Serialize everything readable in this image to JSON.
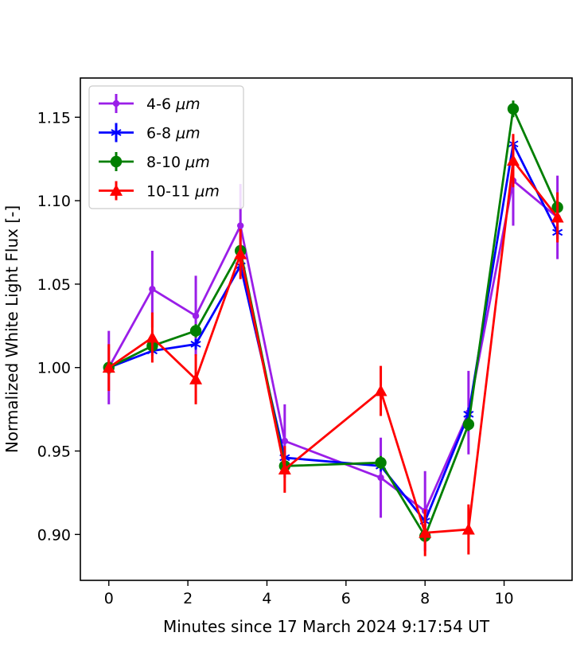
{
  "chart_data": {
    "type": "line",
    "title": "",
    "xlabel": "Minutes since 17 March 2024 9:17:54 UT",
    "ylabel": "Normalized White Light Flux [-]",
    "xlim": [
      -0.72,
      11.72
    ],
    "ylim": [
      0.8725,
      1.1735
    ],
    "xticks": [
      0,
      2,
      4,
      6,
      8,
      10
    ],
    "yticks": [
      0.9,
      0.95,
      1.0,
      1.05,
      1.1,
      1.15
    ],
    "xtick_labels": [
      "0",
      "2",
      "4",
      "6",
      "8",
      "10"
    ],
    "ytick_labels": [
      "0.90",
      "0.95",
      "1.00",
      "1.05",
      "1.10",
      "1.15"
    ],
    "legend_position": "top-left",
    "series": [
      {
        "name": "4-6",
        "unit": "μm",
        "color": "#9a1ee8",
        "marker": "dot",
        "x": [
          0,
          1.1,
          2.2,
          3.33,
          4.45,
          6.88,
          8.0,
          9.1,
          10.23,
          11.35
        ],
        "y": [
          1.0,
          1.047,
          1.031,
          1.085,
          0.956,
          0.934,
          0.914,
          0.973,
          1.112,
          1.09
        ],
        "err": [
          0.022,
          0.023,
          0.024,
          0.025,
          0.022,
          0.024,
          0.024,
          0.025,
          0.027,
          0.025
        ]
      },
      {
        "name": "6-8",
        "unit": "μm",
        "color": "#0000ff",
        "marker": "star",
        "x": [
          0,
          1.1,
          2.2,
          3.33,
          4.45,
          6.88,
          8.0,
          9.1,
          10.23,
          11.35
        ],
        "y": [
          1.0,
          1.01,
          1.014,
          1.061,
          0.946,
          0.941,
          0.908,
          0.972,
          1.134,
          1.081
        ],
        "err": [
          0.004,
          0.003,
          0.003,
          0.004,
          0.004,
          0.003,
          0.004,
          0.004,
          0.004,
          0.004
        ]
      },
      {
        "name": "8-10",
        "unit": "μm",
        "color": "#007f00",
        "marker": "circle",
        "x": [
          0,
          1.1,
          2.2,
          3.33,
          4.45,
          6.88,
          8.0,
          9.1,
          10.23,
          11.35
        ],
        "y": [
          1.0,
          1.013,
          1.022,
          1.07,
          0.941,
          0.943,
          0.899,
          0.966,
          1.155,
          1.096
        ],
        "err": [
          0.004,
          0.004,
          0.004,
          0.004,
          0.004,
          0.004,
          0.004,
          0.004,
          0.005,
          0.004
        ]
      },
      {
        "name": "10-11",
        "unit": "μm",
        "color": "#ff0000",
        "marker": "triangle",
        "x": [
          0,
          1.1,
          2.2,
          3.33,
          4.45,
          6.88,
          8.0,
          9.1,
          10.23,
          11.35
        ],
        "y": [
          1.0,
          1.018,
          0.993,
          1.068,
          0.939,
          0.986,
          0.901,
          0.903,
          1.124,
          1.09
        ],
        "err": [
          0.014,
          0.015,
          0.015,
          0.015,
          0.014,
          0.015,
          0.014,
          0.015,
          0.016,
          0.015
        ]
      }
    ]
  }
}
